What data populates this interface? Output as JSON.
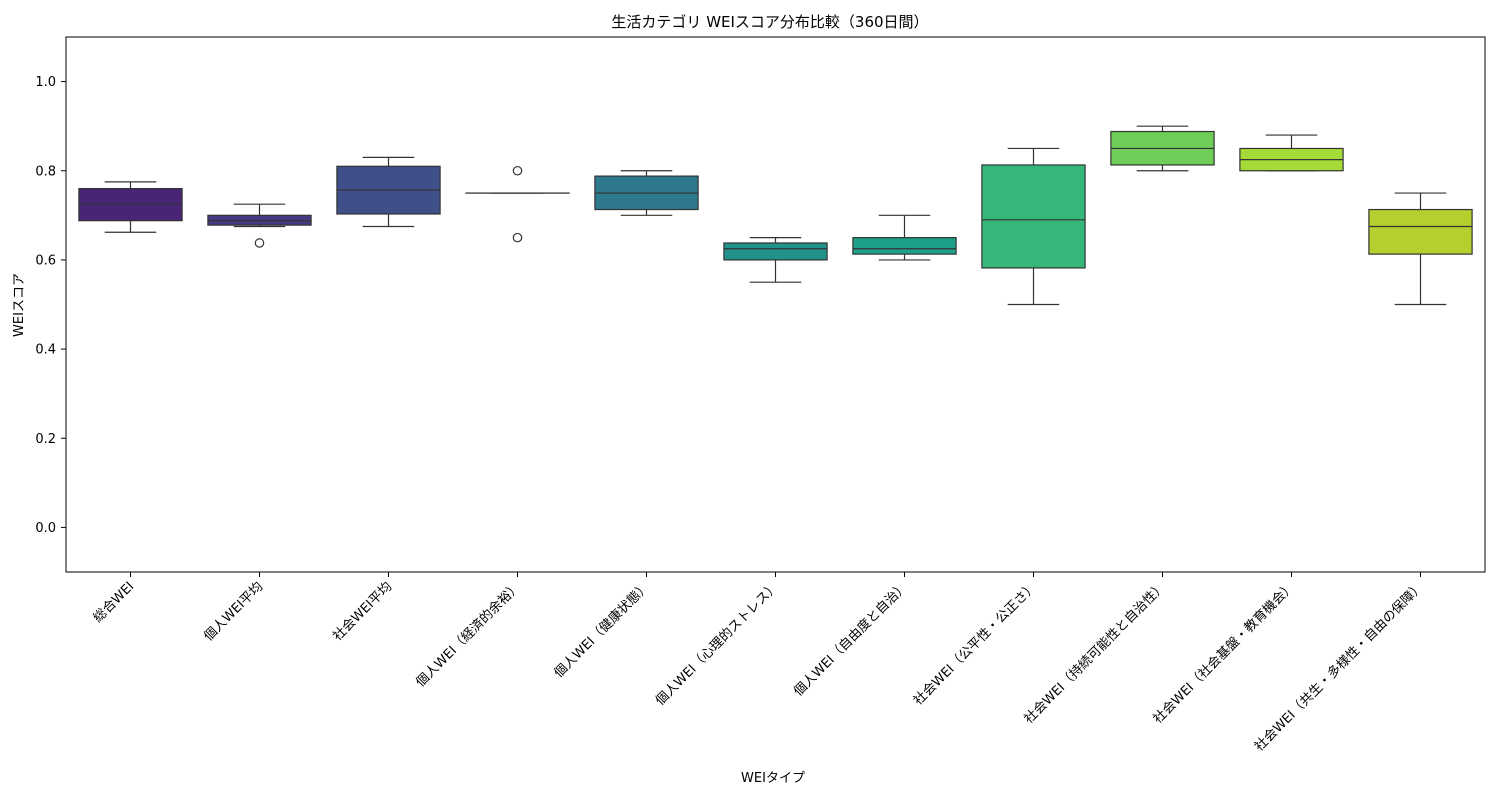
{
  "chart_data": {
    "type": "box",
    "title": "生活カテゴリ WEIスコア分布比較（360日間）",
    "xlabel": "WEIタイプ",
    "ylabel": "WEIスコア",
    "ylim": [
      -0.1,
      1.1
    ],
    "yticks": [
      "0.0",
      "0.2",
      "0.4",
      "0.6",
      "0.8",
      "1.0"
    ],
    "grid": false,
    "categories": [
      "総合WEI",
      "個人WEI平均",
      "社会WEI平均",
      "個人WEI（経済的余裕）",
      "個人WEI（健康状態）",
      "個人WEI（心理的ストレス）",
      "個人WEI（自由度と自治）",
      "社会WEI（公平性・公正さ）",
      "社会WEI（持続可能性と自治性）",
      "社会WEI（社会基盤・教育機会）",
      "社会WEI（共生・多様性・自由の保障）"
    ],
    "boxes": [
      {
        "whisker_low": 0.662,
        "q1": 0.688,
        "median": 0.725,
        "q3": 0.76,
        "whisker_high": 0.775,
        "outliers": [],
        "color": "#482576"
      },
      {
        "whisker_low": 0.675,
        "q1": 0.678,
        "median": 0.688,
        "q3": 0.7,
        "whisker_high": 0.725,
        "outliers": [
          0.638
        ],
        "color": "#443983"
      },
      {
        "whisker_low": 0.675,
        "q1": 0.703,
        "median": 0.757,
        "q3": 0.81,
        "whisker_high": 0.83,
        "outliers": [],
        "color": "#3f4f89"
      },
      {
        "whisker_low": 0.75,
        "q1": 0.75,
        "median": 0.75,
        "q3": 0.75,
        "whisker_high": 0.75,
        "outliers": [
          0.8,
          0.65
        ],
        "color": "#31688e"
      },
      {
        "whisker_low": 0.7,
        "q1": 0.713,
        "median": 0.75,
        "q3": 0.788,
        "whisker_high": 0.8,
        "outliers": [],
        "color": "#2e798e"
      },
      {
        "whisker_low": 0.55,
        "q1": 0.6,
        "median": 0.625,
        "q3": 0.638,
        "whisker_high": 0.65,
        "outliers": [],
        "color": "#21918c"
      },
      {
        "whisker_low": 0.6,
        "q1": 0.613,
        "median": 0.625,
        "q3": 0.65,
        "whisker_high": 0.7,
        "outliers": [],
        "color": "#1fa088"
      },
      {
        "whisker_low": 0.5,
        "q1": 0.582,
        "median": 0.69,
        "q3": 0.813,
        "whisker_high": 0.85,
        "outliers": [],
        "color": "#35b779"
      },
      {
        "whisker_low": 0.8,
        "q1": 0.813,
        "median": 0.85,
        "q3": 0.888,
        "whisker_high": 0.9,
        "outliers": [],
        "color": "#6ece58"
      },
      {
        "whisker_low": 0.8,
        "q1": 0.8,
        "median": 0.825,
        "q3": 0.85,
        "whisker_high": 0.88,
        "outliers": [],
        "color": "#a5db36"
      },
      {
        "whisker_low": 0.5,
        "q1": 0.613,
        "median": 0.675,
        "q3": 0.713,
        "whisker_high": 0.75,
        "outliers": [],
        "color": "#b5cf2f"
      }
    ]
  }
}
